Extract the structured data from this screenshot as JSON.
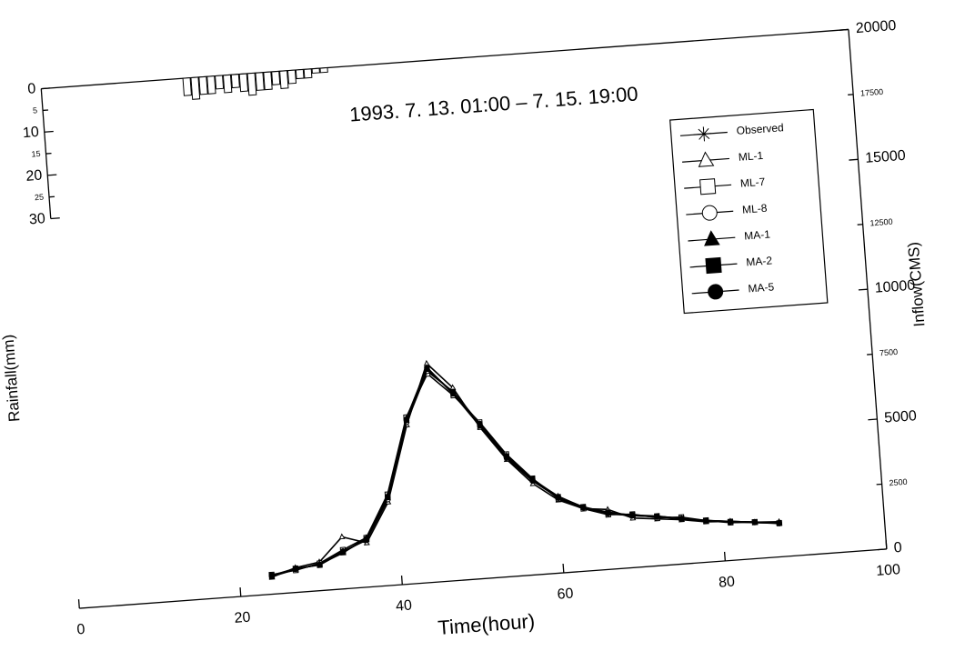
{
  "chart_data": {
    "type": "line",
    "title": "1993. 7. 13. 01:00 – 7. 15. 19:00",
    "x_label": "Time(hour)",
    "y_label": "Inflow(CMS)",
    "y2_label": "Rainfall(mm)",
    "xlim": [
      0,
      100
    ],
    "xticks": [
      0,
      20,
      40,
      60,
      80,
      100
    ],
    "ylim": [
      0,
      20000
    ],
    "yticks": [
      0,
      2500,
      5000,
      7500,
      10000,
      12500,
      15000,
      17500,
      20000
    ],
    "y2lim": [
      0,
      120
    ],
    "y2ticks": [
      0,
      5,
      10,
      15,
      20,
      25,
      30
    ],
    "y2_inverted": true,
    "legend": "upper right",
    "x": [
      24,
      27,
      30,
      33,
      36,
      39,
      42,
      45,
      48,
      51,
      54,
      57,
      60,
      63,
      66,
      69,
      72,
      75,
      78,
      81,
      84,
      87
    ],
    "series": [
      {
        "name": "Observed",
        "color": "#000000",
        "marker": "asterisk",
        "values": [
          700,
          900,
          1000,
          1400,
          1850,
          3400,
          6300,
          8200,
          7200,
          5900,
          4600,
          3650,
          2900,
          2450,
          2150,
          2000,
          1900,
          1750,
          1600,
          1500,
          1400,
          1300
        ]
      },
      {
        "name": "ML-1",
        "color": "#000000",
        "marker": "triangle-open",
        "values": [
          650,
          950,
          1100,
          2000,
          1700,
          3200,
          6100,
          8400,
          7400,
          5800,
          4500,
          3500,
          2800,
          2400,
          2300,
          1900,
          1800,
          1700,
          1550,
          1500,
          1400,
          1350
        ]
      },
      {
        "name": "ML-7",
        "color": "#000000",
        "marker": "square-open",
        "values": [
          750,
          850,
          1050,
          1500,
          1900,
          3500,
          6400,
          8000,
          7100,
          6000,
          4700,
          3700,
          2850,
          2400,
          2100,
          2050,
          1850,
          1800,
          1600,
          1450,
          1400,
          1300
        ]
      },
      {
        "name": "ML-8",
        "color": "#000000",
        "marker": "circle-open",
        "values": [
          700,
          900,
          1000,
          1450,
          1800,
          3300,
          6200,
          8100,
          7250,
          5950,
          4550,
          3600,
          2900,
          2450,
          2150,
          2000,
          1900,
          1750,
          1600,
          1500,
          1400,
          1300
        ]
      },
      {
        "name": "MA-1",
        "color": "#000000",
        "marker": "triangle",
        "values": [
          680,
          880,
          1020,
          1380,
          1900,
          3450,
          6350,
          8250,
          7150,
          5850,
          4650,
          3650,
          2950,
          2450,
          2200,
          2000,
          1880,
          1760,
          1580,
          1500,
          1380,
          1300
        ]
      },
      {
        "name": "MA-2",
        "color": "#000000",
        "marker": "square",
        "values": [
          720,
          920,
          980,
          1420,
          1830,
          3380,
          6280,
          8180,
          7220,
          5920,
          4620,
          3680,
          2920,
          2470,
          2170,
          2020,
          1910,
          1740,
          1610,
          1490,
          1410,
          1290
        ]
      },
      {
        "name": "MA-5",
        "color": "#000000",
        "marker": "circle",
        "values": [
          710,
          890,
          1010,
          1410,
          1860,
          3420,
          6320,
          8220,
          7180,
          5880,
          4580,
          3620,
          2880,
          2430,
          2140,
          1990,
          1890,
          1730,
          1590,
          1480,
          1390,
          1280
        ]
      }
    ],
    "rainfall": {
      "x": [
        18,
        19,
        20,
        21,
        22,
        23,
        24,
        25,
        26,
        27,
        28,
        29,
        30,
        31,
        32,
        33,
        34,
        35
      ],
      "values": [
        4,
        5,
        4,
        4,
        3,
        4,
        3,
        4,
        5,
        4,
        4,
        3,
        4,
        3,
        2,
        2,
        1,
        1
      ],
      "color": "#ffffff"
    }
  }
}
